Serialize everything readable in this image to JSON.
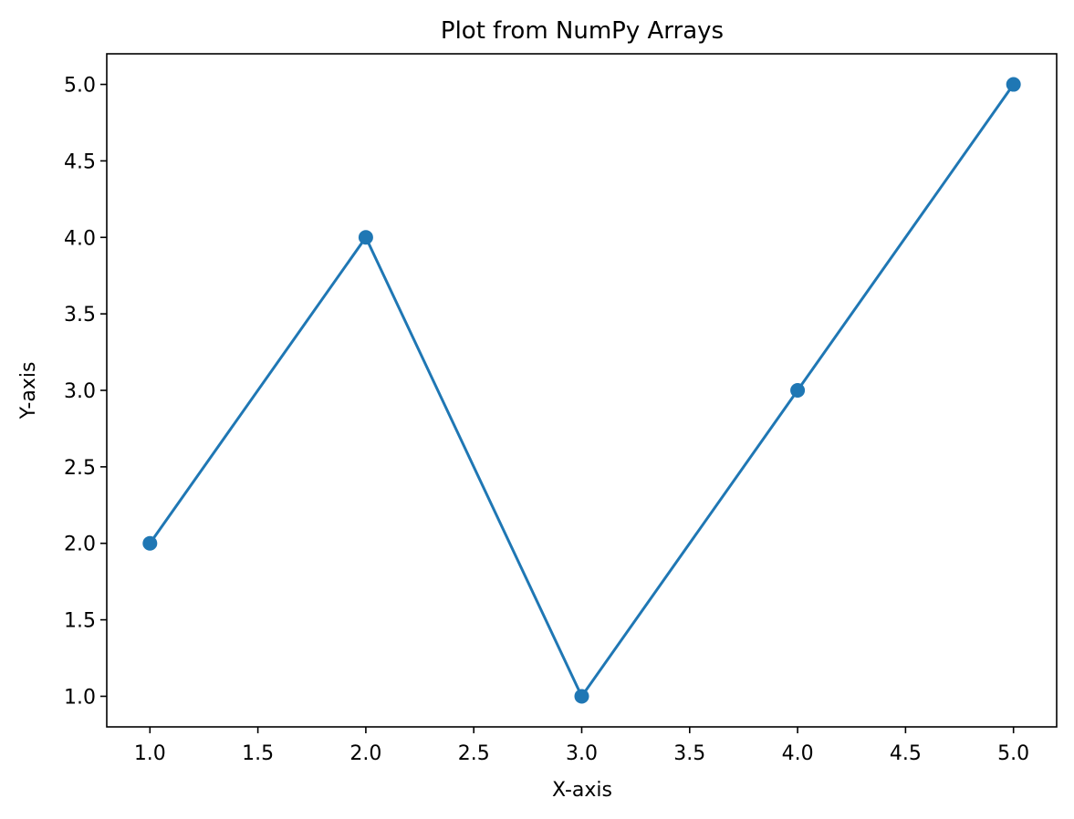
{
  "chart_data": {
    "type": "line",
    "title": "Plot from NumPy Arrays",
    "xlabel": "X-axis",
    "ylabel": "Y-axis",
    "x": [
      1,
      2,
      3,
      4,
      5
    ],
    "series": [
      {
        "values": [
          2,
          4,
          1,
          3,
          5
        ],
        "color": "#1f77b4",
        "marker": "circle"
      }
    ],
    "xlim": [
      0.8,
      5.2
    ],
    "ylim": [
      0.8,
      5.2
    ],
    "xticks": [
      "1.0",
      "1.5",
      "2.0",
      "2.5",
      "3.0",
      "3.5",
      "4.0",
      "4.5",
      "5.0"
    ],
    "yticks": [
      "1.0",
      "1.5",
      "2.0",
      "2.5",
      "3.0",
      "3.5",
      "4.0",
      "4.5",
      "5.0"
    ],
    "grid": false,
    "legend": false
  }
}
